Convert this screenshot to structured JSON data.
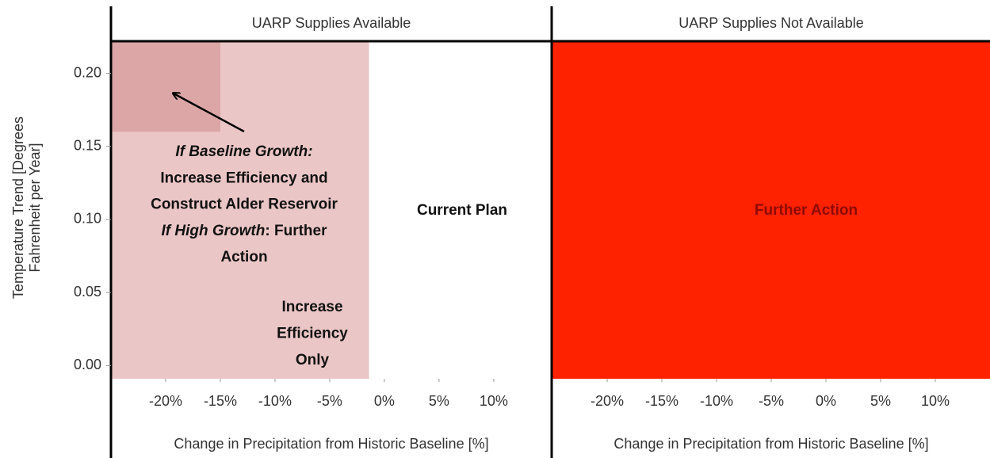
{
  "chart_data": [
    {
      "type": "region",
      "title": "UARP Supplies Available",
      "ylabel": [
        "Temperature Trend [Degrees",
        "Fahrenheit per Year]"
      ],
      "xlabel": "Change in Precipitation from Historic Baseline [%]",
      "xlim": [
        -25,
        15.3
      ],
      "ylim": [
        -0.009,
        0.222
      ],
      "xticks": [
        {
          "value": -20,
          "label": "-20%"
        },
        {
          "value": -15,
          "label": "-15%"
        },
        {
          "value": -10,
          "label": "-10%"
        },
        {
          "value": -5,
          "label": "-5%"
        },
        {
          "value": 0,
          "label": "0%"
        },
        {
          "value": 5,
          "label": "5%"
        },
        {
          "value": 10,
          "label": "10%"
        }
      ],
      "yticks": [
        {
          "value": 0,
          "label": "0.00"
        },
        {
          "value": 0.05,
          "label": "0.05"
        },
        {
          "value": 0.1,
          "label": "0.10"
        },
        {
          "value": 0.15,
          "label": "0.15"
        },
        {
          "value": 0.2,
          "label": "0.20"
        }
      ],
      "regions": [
        {
          "xrange": [
            -25,
            -1.4
          ],
          "color": "#ebc6c6"
        },
        {
          "xrange": [
            -25,
            -15
          ],
          "yrange": [
            0.16,
            0.222
          ],
          "color": "#dca6a6"
        }
      ],
      "annotations": [
        {
          "lines": [
            [
              "If Baseline Growth:"
            ],
            [
              "Increase Efficiency and"
            ],
            [
              "Construct Alder Reservoir"
            ],
            [
              "If High Growth",
              ": Further"
            ],
            [
              "Action"
            ]
          ]
        },
        {
          "lines": [
            [
              "Increase"
            ],
            [
              "Efficiency"
            ],
            [
              "Only"
            ]
          ]
        },
        {
          "lines": [
            [
              "Current Plan"
            ]
          ]
        }
      ]
    },
    {
      "type": "region",
      "title": "UARP Supplies Not Available",
      "xlabel": "Change in Precipitation from Historic Baseline [%]",
      "xlim": [
        -25,
        15
      ],
      "ylim": [
        -0.009,
        0.222
      ],
      "xticks": [
        {
          "value": -20,
          "label": "-20%"
        },
        {
          "value": -15,
          "label": "-15%"
        },
        {
          "value": -10,
          "label": "-10%"
        },
        {
          "value": -5,
          "label": "-5%"
        },
        {
          "value": 0,
          "label": "0%"
        },
        {
          "value": 5,
          "label": "5%"
        },
        {
          "value": 10,
          "label": "10%"
        }
      ],
      "regions": [
        {
          "xrange": [
            -25,
            15
          ],
          "color": "#ff2200"
        }
      ],
      "annotations": [
        {
          "lines": [
            [
              "Further Action"
            ]
          ]
        }
      ]
    }
  ]
}
